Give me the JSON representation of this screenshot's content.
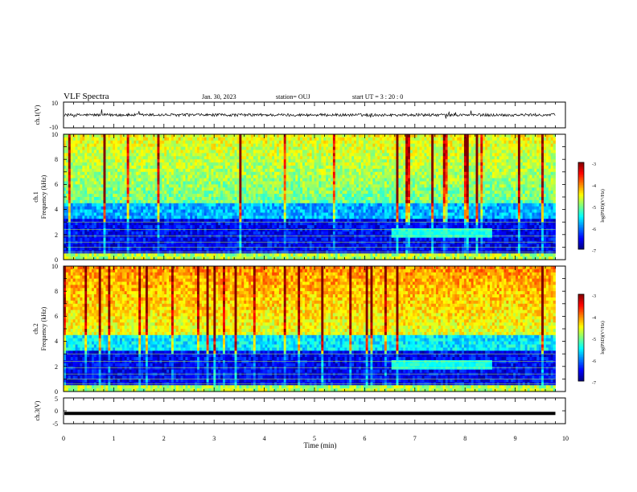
{
  "header": {
    "title": "VLF Spectra",
    "date": "Jan. 30, 2023",
    "station": "station= OUJ",
    "start": "start  UT =   3 : 20 : 0"
  },
  "chart_data": [
    {
      "type": "line",
      "panel": "ch1-waveform",
      "ylabel": "ch.1(V)",
      "ylim": [
        -10,
        10
      ],
      "y_ticklabels": [
        "10",
        "-10"
      ],
      "series": [
        {
          "values_description": "noise around 0 V",
          "level": 0
        }
      ],
      "x_range_min": [
        0,
        9.8
      ]
    },
    {
      "type": "heatmap",
      "panel": "ch1-spectrogram",
      "ylabel": "ch.1\nFrequency (kHz)",
      "ylim": [
        0,
        10
      ],
      "y_ticklabels": [
        "10",
        "8",
        "6",
        "4",
        "2",
        "0"
      ],
      "x_range_min": [
        0,
        9.8
      ],
      "colorbar": {
        "label": "log(PSD)(V²/Hz)",
        "range": [
          -7,
          -3
        ],
        "ticklabels": [
          "-3",
          "-4",
          "-5",
          "-6",
          "-7"
        ]
      }
    },
    {
      "type": "heatmap",
      "panel": "ch2-spectrogram",
      "ylabel": "ch.2\nFrequency (kHz)",
      "ylim": [
        0,
        10
      ],
      "y_ticklabels": [
        "10",
        "8",
        "6",
        "4",
        "2",
        "0"
      ],
      "x_range_min": [
        0,
        9.8
      ],
      "colorbar": {
        "label": "log(PSD)(V²/Hz)",
        "range": [
          -7,
          -3
        ],
        "ticklabels": [
          "-3",
          "-4",
          "-5",
          "-6",
          "-7"
        ]
      }
    },
    {
      "type": "line",
      "panel": "ch3-waveform",
      "ylabel": "ch.3(V)",
      "ylim": [
        -5,
        5
      ],
      "y_ticklabels": [
        "5",
        "0",
        "-5"
      ],
      "series": [
        {
          "level": -1.0
        }
      ],
      "x_range_min": [
        0,
        9.8
      ]
    }
  ],
  "xaxis": {
    "label": "Time (min)",
    "xlim": [
      0,
      10
    ],
    "ticklabels": [
      "0",
      "1",
      "2",
      "3",
      "4",
      "5",
      "6",
      "7",
      "8",
      "9",
      "10"
    ]
  },
  "colors": {
    "background": "#ffffff",
    "axis": "#000000",
    "trace": "#000000"
  }
}
